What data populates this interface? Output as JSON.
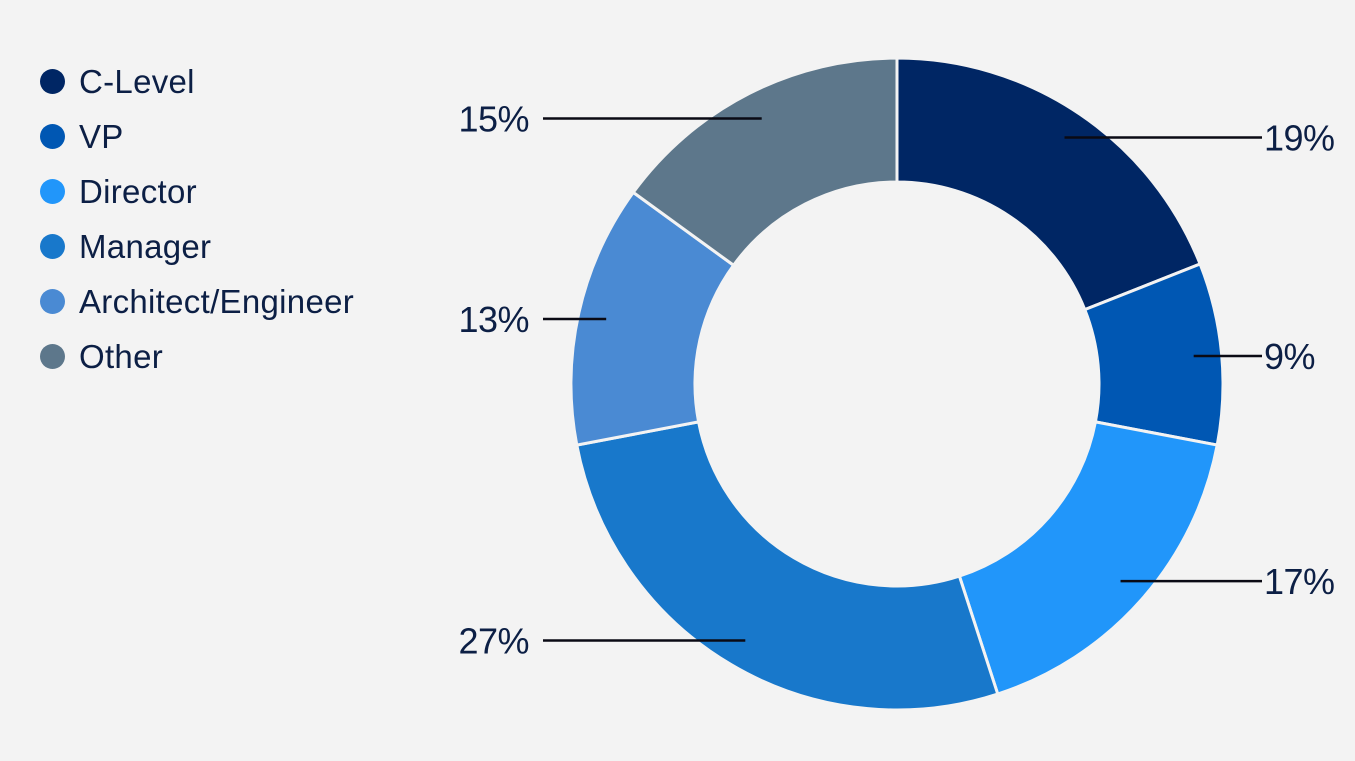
{
  "chart_data": {
    "type": "pie",
    "donut": true,
    "title": "",
    "legend_position": "top-left",
    "categories": [
      "C-Level",
      "VP",
      "Director",
      "Manager",
      "Architect/Engineer",
      "Other"
    ],
    "values": [
      19,
      9,
      17,
      27,
      13,
      15
    ],
    "value_labels": [
      "19%",
      "9%",
      "17%",
      "27%",
      "13%",
      "15%"
    ],
    "colors": [
      "#002664",
      "#0057b3",
      "#2196fa",
      "#1878cb",
      "#4a8ad3",
      "#5d778b"
    ],
    "label_color": "#0c1f45",
    "background": "#f3f3f3"
  }
}
